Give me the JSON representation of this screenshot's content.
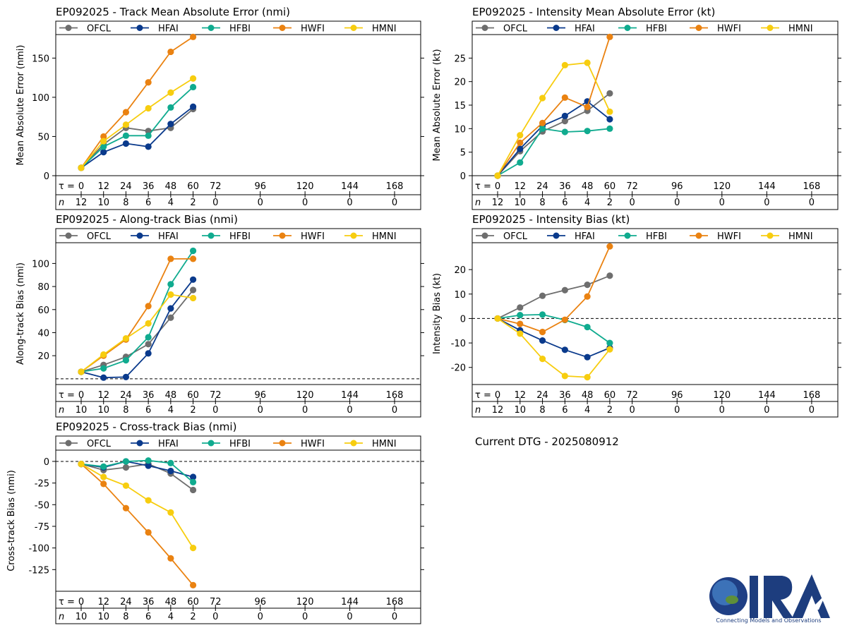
{
  "colors": {
    "OFCL": "#6e6e6e",
    "HFAI": "#0a3a8c",
    "HFBI": "#10ab8f",
    "HWFI": "#ea8211",
    "HMNI": "#f7cd0f",
    "zero_line": "#000000"
  },
  "chart_data": [
    {
      "id": "track_mae",
      "type": "line",
      "title": "EP092025 - Track Mean Absolute Error (nmi)",
      "ylabel": "Mean Absolute Error (nmi)",
      "ylim": [
        0,
        180
      ],
      "yticks": [
        0,
        50,
        100,
        150
      ],
      "zero_line": false,
      "legend": [
        "OFCL",
        "HFAI",
        "HFBI",
        "HWFI",
        "HMNI"
      ],
      "tau_label": "τ = ",
      "tau_ticks": [
        0,
        12,
        24,
        36,
        48,
        60,
        72,
        96,
        120,
        144,
        168
      ],
      "n_label": "n",
      "n_values": [
        12,
        10,
        8,
        6,
        4,
        2,
        0,
        0,
        0,
        0,
        0
      ],
      "x": [
        0,
        12,
        24,
        36,
        48,
        60
      ],
      "series": [
        {
          "name": "OFCL",
          "values": [
            10,
            40,
            61,
            57,
            61,
            85
          ]
        },
        {
          "name": "HFAI",
          "values": [
            10,
            30,
            41,
            37,
            66,
            88
          ]
        },
        {
          "name": "HFBI",
          "values": [
            10,
            37,
            51,
            51,
            87,
            113
          ]
        },
        {
          "name": "HWFI",
          "values": [
            10,
            50,
            81,
            119,
            158,
            177
          ]
        },
        {
          "name": "HMNI",
          "values": [
            10,
            44,
            65,
            86,
            106,
            124
          ]
        }
      ]
    },
    {
      "id": "intensity_mae",
      "type": "line",
      "title": "EP092025 - Intensity Mean Absolute Error (kt)",
      "ylabel": "Mean Absolute Error (kt)",
      "ylim": [
        0,
        30
      ],
      "yticks": [
        0,
        5,
        10,
        15,
        20,
        25
      ],
      "zero_line": false,
      "legend": [
        "OFCL",
        "HFAI",
        "HFBI",
        "HWFI",
        "HMNI"
      ],
      "tau_label": "τ = ",
      "tau_ticks": [
        0,
        12,
        24,
        36,
        48,
        60,
        72,
        96,
        120,
        144,
        168
      ],
      "n_label": "n",
      "n_values": [
        12,
        10,
        8,
        6,
        4,
        2,
        0,
        0,
        0,
        0,
        0
      ],
      "x": [
        0,
        12,
        24,
        36,
        48,
        60
      ],
      "series": [
        {
          "name": "OFCL",
          "values": [
            0,
            5.2,
            9.4,
            11.6,
            13.8,
            17.5
          ]
        },
        {
          "name": "HFAI",
          "values": [
            0,
            5.7,
            10.6,
            12.7,
            15.8,
            12
          ]
        },
        {
          "name": "HFBI",
          "values": [
            0,
            2.8,
            10,
            9.3,
            9.5,
            10
          ]
        },
        {
          "name": "HWFI",
          "values": [
            0,
            7,
            11.2,
            16.6,
            14.6,
            29.5
          ]
        },
        {
          "name": "HMNI",
          "values": [
            0,
            8.6,
            16.5,
            23.5,
            24,
            13.6
          ]
        }
      ]
    },
    {
      "id": "along_bias",
      "type": "line",
      "title": "EP092025 - Along-track Bias (nmi)",
      "ylabel": "Along-track Bias (nmi)",
      "ylim": [
        -5,
        118
      ],
      "yticks": [
        20,
        40,
        60,
        80,
        100
      ],
      "zero_line": true,
      "legend": [
        "OFCL",
        "HFAI",
        "HFBI",
        "HWFI",
        "HMNI"
      ],
      "tau_label": "τ = ",
      "tau_ticks": [
        0,
        12,
        24,
        36,
        48,
        60,
        72,
        96,
        120,
        144,
        168
      ],
      "n_label": "n",
      "n_values": [
        10,
        10,
        8,
        6,
        4,
        2,
        0,
        0,
        0,
        0,
        0
      ],
      "x": [
        0,
        12,
        24,
        36,
        48,
        60
      ],
      "series": [
        {
          "name": "OFCL",
          "values": [
            6,
            12,
            19,
            30,
            53,
            77
          ]
        },
        {
          "name": "HFAI",
          "values": [
            6,
            1,
            1.5,
            22,
            61,
            86
          ]
        },
        {
          "name": "HFBI",
          "values": [
            6,
            9,
            16,
            36,
            82,
            111
          ]
        },
        {
          "name": "HWFI",
          "values": [
            6,
            20,
            34,
            63,
            104,
            104
          ]
        },
        {
          "name": "HMNI",
          "values": [
            6,
            21,
            35,
            48,
            73,
            70
          ]
        }
      ]
    },
    {
      "id": "intensity_bias",
      "type": "line",
      "title": "EP092025 - Intensity Bias (kt)",
      "ylabel": "Intensity Bias (kt)",
      "ylim": [
        -27,
        31
      ],
      "yticks": [
        -20,
        -10,
        0,
        10,
        20
      ],
      "zero_line": true,
      "legend": [
        "OFCL",
        "HFAI",
        "HFBI",
        "HWFI",
        "HMNI"
      ],
      "tau_label": "τ = ",
      "tau_ticks": [
        0,
        12,
        24,
        36,
        48,
        60,
        72,
        96,
        120,
        144,
        168
      ],
      "n_label": "n",
      "n_values": [
        12,
        10,
        8,
        6,
        4,
        2,
        0,
        0,
        0,
        0,
        0
      ],
      "x": [
        0,
        12,
        24,
        36,
        48,
        60
      ],
      "series": [
        {
          "name": "OFCL",
          "values": [
            0,
            4.5,
            9.3,
            11.6,
            13.8,
            17.5
          ]
        },
        {
          "name": "HFAI",
          "values": [
            0,
            -4.8,
            -9,
            -12.8,
            -15.8,
            -12
          ]
        },
        {
          "name": "HFBI",
          "values": [
            0,
            1.4,
            1.6,
            -0.6,
            -3.5,
            -10
          ]
        },
        {
          "name": "HWFI",
          "values": [
            0,
            -2.2,
            -5.5,
            -0.5,
            9,
            29.5
          ]
        },
        {
          "name": "HMNI",
          "values": [
            0,
            -6.2,
            -16.5,
            -23.5,
            -24,
            -12.6
          ]
        }
      ]
    },
    {
      "id": "cross_bias",
      "type": "line",
      "title": "EP092025 - Cross-track Bias (nmi)",
      "ylabel": "Cross-track Bias (nmi)",
      "ylim": [
        -150,
        13
      ],
      "yticks": [
        -125,
        -100,
        -75,
        -50,
        -25,
        0
      ],
      "zero_line": true,
      "legend": [
        "OFCL",
        "HFAI",
        "HFBI",
        "HWFI",
        "HMNI"
      ],
      "tau_label": "τ = ",
      "tau_ticks": [
        0,
        12,
        24,
        36,
        48,
        60,
        72,
        96,
        120,
        144,
        168
      ],
      "n_label": "n",
      "n_values": [
        10,
        10,
        8,
        6,
        4,
        2,
        0,
        0,
        0,
        0,
        0
      ],
      "x": [
        0,
        12,
        24,
        36,
        48,
        60
      ],
      "series": [
        {
          "name": "OFCL",
          "values": [
            -3,
            -10,
            -7,
            -3,
            -14,
            -33
          ]
        },
        {
          "name": "HFAI",
          "values": [
            -3,
            -7,
            0,
            -5,
            -11,
            -18
          ]
        },
        {
          "name": "HFBI",
          "values": [
            -3,
            -6,
            0,
            1,
            -2,
            -24
          ]
        },
        {
          "name": "HWFI",
          "values": [
            -3,
            -26,
            -54,
            -82,
            -112,
            -143
          ]
        },
        {
          "name": "HMNI",
          "values": [
            -3,
            -18,
            -28,
            -45,
            -59,
            -100
          ]
        }
      ]
    }
  ],
  "dtg_text": "Current DTG - 2025080912",
  "logo": {
    "text": "CIRA",
    "tagline": "Connecting Models and Observations"
  }
}
